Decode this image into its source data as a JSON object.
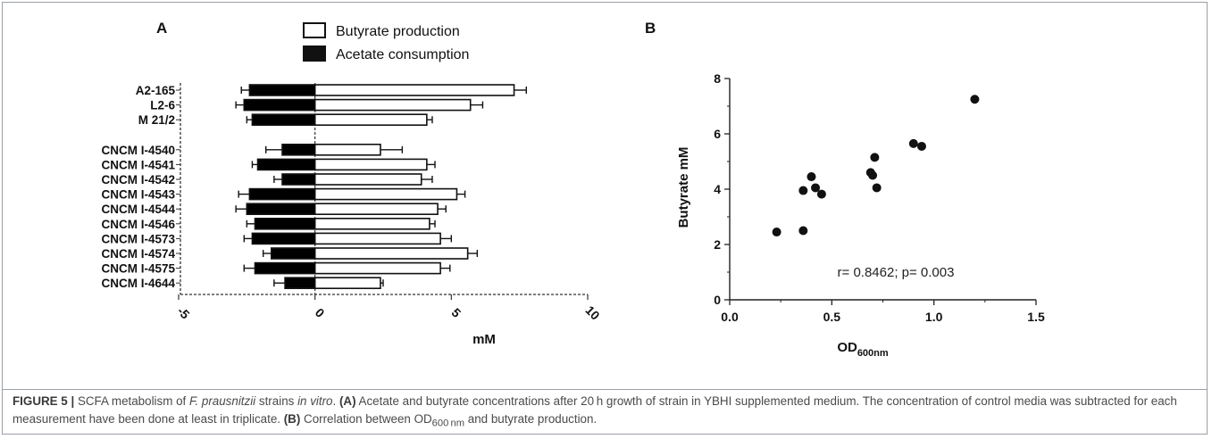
{
  "chart_data": [
    {
      "panel_label": "A",
      "type": "bar",
      "orientation": "horizontal",
      "categories": [
        "A2-165",
        "L2-6",
        "M 21/2",
        "CNCM I-4540",
        "CNCM I-4541",
        "CNCM I-4542",
        "CNCM I-4543",
        "CNCM I-4544",
        "CNCM I-4546",
        "CNCM I-4573",
        "CNCM I-4574",
        "CNCM I-4575",
        "CNCM I-4644"
      ],
      "series": [
        {
          "name": "Butyrate production",
          "color": "#ffffff",
          "values": [
            7.3,
            5.7,
            4.1,
            2.4,
            4.1,
            3.9,
            5.2,
            4.5,
            4.2,
            4.6,
            5.6,
            4.6,
            2.4
          ],
          "errors": [
            0.45,
            0.45,
            0.2,
            0.8,
            0.3,
            0.4,
            0.3,
            0.3,
            0.2,
            0.4,
            0.35,
            0.35,
            0.1
          ]
        },
        {
          "name": "Acetate consumption",
          "color": "#000000",
          "values": [
            -2.4,
            -2.6,
            -2.3,
            -1.2,
            -2.1,
            -1.2,
            -2.4,
            -2.5,
            -2.2,
            -2.3,
            -1.6,
            -2.2,
            -1.1
          ],
          "errors": [
            0.3,
            0.3,
            0.2,
            0.6,
            0.2,
            0.3,
            0.4,
            0.4,
            0.3,
            0.3,
            0.3,
            0.4,
            0.4
          ]
        }
      ],
      "xlabel": "mM",
      "xlim": [
        -5,
        10
      ],
      "xticks": [
        "-5",
        "0",
        "5",
        "10"
      ]
    },
    {
      "panel_label": "B",
      "type": "scatter",
      "points": [
        {
          "x": 0.23,
          "y": 2.45
        },
        {
          "x": 0.36,
          "y": 2.5
        },
        {
          "x": 0.36,
          "y": 3.95
        },
        {
          "x": 0.4,
          "y": 4.45
        },
        {
          "x": 0.42,
          "y": 4.05
        },
        {
          "x": 0.45,
          "y": 3.82
        },
        {
          "x": 0.69,
          "y": 4.6
        },
        {
          "x": 0.7,
          "y": 4.5
        },
        {
          "x": 0.71,
          "y": 5.15
        },
        {
          "x": 0.72,
          "y": 4.05
        },
        {
          "x": 0.9,
          "y": 5.65
        },
        {
          "x": 0.94,
          "y": 5.55
        },
        {
          "x": 1.2,
          "y": 7.25
        }
      ],
      "ylabel": "Butyrate mM",
      "xlabel_main": "OD",
      "xlabel_sub": "600nm",
      "xlim": [
        0,
        1.5
      ],
      "ylim": [
        0,
        8
      ],
      "xticks": [
        "0.0",
        "0.5",
        "1.0",
        "1.5"
      ],
      "yticks": [
        "0",
        "2",
        "4",
        "6",
        "8"
      ],
      "annotation": "r= 0.8462; p= 0.003"
    }
  ],
  "caption": {
    "figure_label": "FIGURE 5 |",
    "t1": " SCFA metabolism of ",
    "species": "F. prausnitzii",
    "t2": " strains ",
    "invitro": "in vitro",
    "t3": ". ",
    "a_label": "(A)",
    "t4": " Acetate and butyrate concentrations after 20 h growth of strain in YBHI supplemented medium. The concentration of control media was subtracted for each measurement have been done at least in triplicate. ",
    "b_label": "(B)",
    "t5": " Correlation between OD",
    "od_sub": "600 nm",
    "t6": " and butyrate production."
  }
}
